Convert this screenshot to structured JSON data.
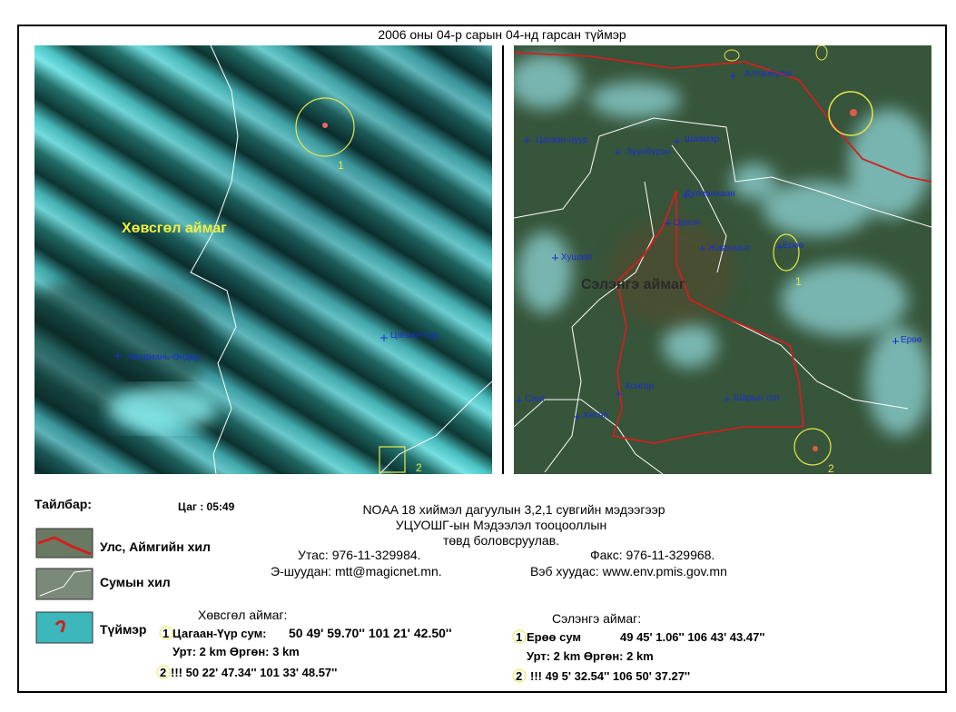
{
  "title": "2006 оны 04-р сарын 04-нд гарсан түймэр",
  "left_map": {
    "province": "Хөвсгөл аймаг",
    "places": [
      "Цагаан-Үүр",
      "Чандмань-Өндөр"
    ],
    "markers": [
      "1",
      "2"
    ]
  },
  "right_map": {
    "province": "Сэлэнгэ аймаг",
    "places": [
      "Алтанбулаг",
      "Цагаан-нуур",
      "Зүүнбүрэн",
      "Шаамар",
      "Дулаанхаан",
      "Орхон",
      "Жавхлант",
      "Ерөө",
      "Хушаат",
      "Ерөө",
      "Хонгор",
      "Шарын гол",
      "Сант",
      "Хөтөл"
    ],
    "markers": [
      "1",
      "2"
    ]
  },
  "legend": {
    "title": "Тайлбар:",
    "time": "Цаг :  05:49",
    "items": [
      "Улс, Аймгийн хил",
      "Сумын хил",
      "Түймэр"
    ]
  },
  "info": {
    "lines": [
      "NOAA 18 хиймэл дагуулын 3,2,1 сувгийн мэдээгээр",
      "УЦУОШГ-ын Мэдээлэл тооцооллын",
      "төвд боловсруулав."
    ],
    "phone": "Утас: 976-11-329984.",
    "fax": "Факс: 976-11-329968.",
    "email": "Э-шуудан: mtt@magicnet.mn.",
    "web": "Вэб хуудас: www.env.pmis.gov.mn"
  },
  "fires": [
    {
      "province": "Хөвсгөл аймаг:",
      "n1": "1",
      "sum": "Цагаан-Үүр сум:",
      "coord1": "50 49' 59.70''   101 21' 42.50''",
      "size": "Урт: 2 km  Өргөн: 3 km",
      "n2": "2",
      "coord2": "!!! 50 22' 47.34'' 101 33' 48.57''"
    },
    {
      "province": "Сэлэнгэ аймаг:",
      "n1": "1",
      "sum": "Ерөө сум",
      "coord1": "49 45' 1.06''  106 43' 43.47''",
      "size": "Урт: 2 km   Өргөн: 2 km",
      "n2": "2",
      "coord2": "!!! 49 5' 32.54''   106 50' 37.27''"
    }
  ]
}
